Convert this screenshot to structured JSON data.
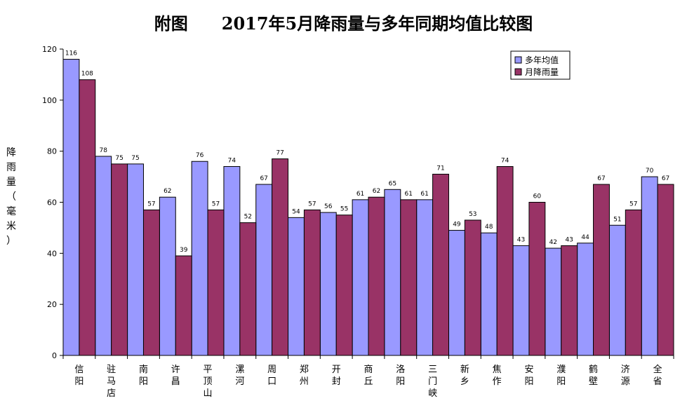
{
  "chart_data": {
    "type": "bar",
    "title_prefix": "附图",
    "title_main": "2017年5月降雨量与多年同期均值比较图",
    "ylabel": "降雨量（毫米）",
    "ylim": [
      0,
      120
    ],
    "yticks": [
      0,
      20,
      40,
      60,
      80,
      100,
      120
    ],
    "legend_position": "top-right",
    "grid": false,
    "categories": [
      "信阳",
      "驻马店",
      "南阳",
      "许昌",
      "平顶山",
      "漯河",
      "周口",
      "郑州",
      "开封",
      "商丘",
      "洛阳",
      "三门峡",
      "新乡",
      "焦作",
      "安阳",
      "濮阳",
      "鹤壁",
      "济源",
      "全省"
    ],
    "series": [
      {
        "name": "多年均值",
        "color": "#9999ff",
        "values": [
          116,
          78,
          75,
          62,
          76,
          74,
          67,
          54,
          56,
          61,
          65,
          61,
          49,
          48,
          43,
          42,
          44,
          51,
          70
        ]
      },
      {
        "name": "月降雨量",
        "color": "#993366",
        "values": [
          108,
          75,
          57,
          39,
          57,
          52,
          77,
          57,
          55,
          62,
          61,
          71,
          53,
          74,
          60,
          43,
          67,
          57,
          67
        ]
      }
    ]
  }
}
